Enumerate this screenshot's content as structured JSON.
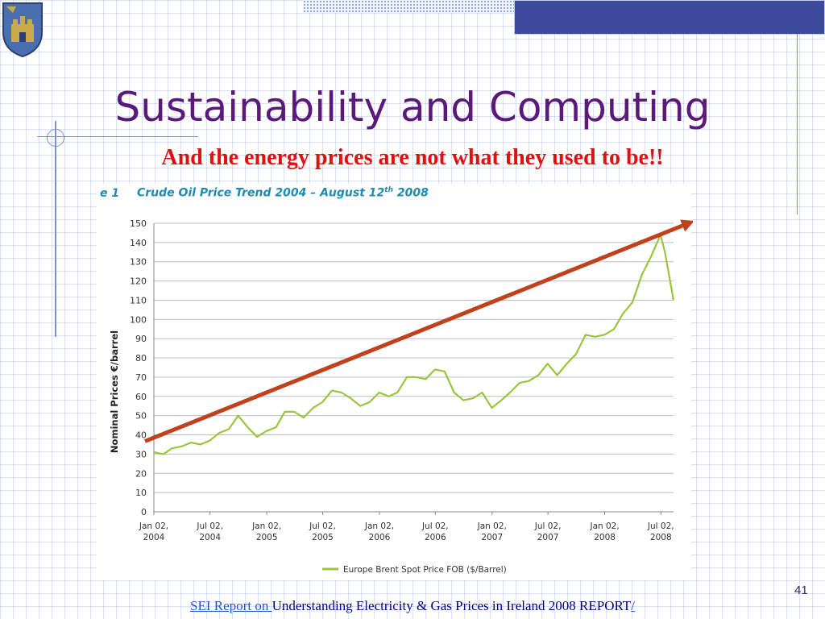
{
  "slide": {
    "title": "Sustainability and Computing",
    "subtitle": "And the energy prices are not what they used to be!!",
    "page_number": "41",
    "footer": {
      "link_text": "SEI Report on ",
      "text": "Understanding Electricity & Gas Prices in Ireland 2008 REPORT",
      "link_tail": "/"
    },
    "colors": {
      "title": "#5b1a7a",
      "subtitle": "#e01010",
      "header_box": "#3b4a9a"
    }
  },
  "figure": {
    "label": "e 1",
    "title_main": "Crude Oil Price Trend 2004 – August 12",
    "title_sup": "th",
    "title_end": " 2008",
    "color": "#1e8bb4"
  },
  "chart_data": {
    "type": "line",
    "ylabel": "Nominal Prices €/barrel",
    "xlabel": "",
    "ylim": [
      0,
      150
    ],
    "y_ticks": [
      "0",
      "10",
      "20",
      "30",
      "40",
      "50",
      "60",
      "70",
      "80",
      "90",
      "100",
      "110",
      "120",
      "130",
      "140",
      "150"
    ],
    "x_tick_labels": [
      [
        "Jan 02,",
        "2004"
      ],
      [
        "Jul 02,",
        "2004"
      ],
      [
        "Jan 02,",
        "2005"
      ],
      [
        "Jul 02,",
        "2005"
      ],
      [
        "Jan 02,",
        "2006"
      ],
      [
        "Jul 02,",
        "2006"
      ],
      [
        "Jan 02,",
        "2007"
      ],
      [
        "Jul 02,",
        "2007"
      ],
      [
        "Jan 02,",
        "2008"
      ],
      [
        "Jul 02,",
        "2008"
      ]
    ],
    "x_ticks": [
      "2004-01-02",
      "2004-07-02",
      "2005-01-02",
      "2005-07-02",
      "2006-01-02",
      "2006-07-02",
      "2007-01-02",
      "2007-07-02",
      "2008-01-02",
      "2008-07-02"
    ],
    "x_range": [
      "2004-01-02",
      "2008-08-12"
    ],
    "grid": true,
    "legend_position": "bottom",
    "series": [
      {
        "name": "Europe Brent Spot Price FOB ($/Barrel)",
        "color": "#9bc53d",
        "points": [
          [
            "2004-01-02",
            31
          ],
          [
            "2004-02-01",
            30
          ],
          [
            "2004-03-01",
            33
          ],
          [
            "2004-04-01",
            34
          ],
          [
            "2004-05-01",
            36
          ],
          [
            "2004-06-01",
            35
          ],
          [
            "2004-07-01",
            37
          ],
          [
            "2004-08-01",
            41
          ],
          [
            "2004-09-01",
            43
          ],
          [
            "2004-10-01",
            50
          ],
          [
            "2004-11-01",
            44
          ],
          [
            "2004-12-01",
            39
          ],
          [
            "2005-01-01",
            42
          ],
          [
            "2005-02-01",
            44
          ],
          [
            "2005-03-01",
            52
          ],
          [
            "2005-04-01",
            52
          ],
          [
            "2005-05-01",
            49
          ],
          [
            "2005-06-01",
            54
          ],
          [
            "2005-07-01",
            57
          ],
          [
            "2005-08-01",
            63
          ],
          [
            "2005-09-01",
            62
          ],
          [
            "2005-10-01",
            59
          ],
          [
            "2005-11-01",
            55
          ],
          [
            "2005-12-01",
            57
          ],
          [
            "2006-01-01",
            62
          ],
          [
            "2006-02-01",
            60
          ],
          [
            "2006-03-01",
            62
          ],
          [
            "2006-04-01",
            70
          ],
          [
            "2006-05-01",
            70
          ],
          [
            "2006-06-01",
            69
          ],
          [
            "2006-07-01",
            74
          ],
          [
            "2006-08-01",
            73
          ],
          [
            "2006-09-01",
            62
          ],
          [
            "2006-10-01",
            58
          ],
          [
            "2006-11-01",
            59
          ],
          [
            "2006-12-01",
            62
          ],
          [
            "2007-01-01",
            54
          ],
          [
            "2007-02-01",
            58
          ],
          [
            "2007-03-01",
            62
          ],
          [
            "2007-04-01",
            67
          ],
          [
            "2007-05-01",
            68
          ],
          [
            "2007-06-01",
            71
          ],
          [
            "2007-07-01",
            77
          ],
          [
            "2007-08-01",
            71
          ],
          [
            "2007-09-01",
            77
          ],
          [
            "2007-10-01",
            82
          ],
          [
            "2007-11-01",
            92
          ],
          [
            "2007-12-01",
            91
          ],
          [
            "2008-01-01",
            92
          ],
          [
            "2008-02-01",
            95
          ],
          [
            "2008-03-01",
            103
          ],
          [
            "2008-04-01",
            109
          ],
          [
            "2008-05-01",
            123
          ],
          [
            "2008-06-01",
            133
          ],
          [
            "2008-07-01",
            144
          ],
          [
            "2008-07-15",
            135
          ],
          [
            "2008-08-12",
            110
          ]
        ]
      }
    ],
    "annotations": [
      {
        "type": "trend-arrow",
        "color": "#c0421c",
        "from": [
          "2004-01-02",
          35
        ],
        "to": [
          "2008-08-12",
          150
        ]
      }
    ]
  }
}
